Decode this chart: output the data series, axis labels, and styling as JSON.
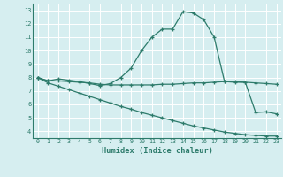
{
  "line1_x": [
    0,
    1,
    2,
    3,
    4,
    5,
    6,
    7,
    8,
    9,
    10,
    11,
    12,
    13,
    14,
    15,
    16,
    17,
    18,
    19,
    20,
    21,
    22,
    23
  ],
  "line1_y": [
    8.0,
    7.75,
    7.9,
    7.8,
    7.7,
    7.55,
    7.4,
    7.55,
    8.0,
    8.7,
    10.0,
    11.0,
    11.6,
    11.6,
    12.9,
    12.8,
    12.3,
    11.0,
    7.7,
    7.65,
    7.65,
    5.4,
    5.45,
    5.3
  ],
  "line2_x": [
    0,
    1,
    2,
    3,
    4,
    5,
    6,
    7,
    8,
    9,
    10,
    11,
    12,
    13,
    14,
    15,
    16,
    17,
    18,
    19,
    20,
    21,
    22,
    23
  ],
  "line2_y": [
    8.0,
    7.75,
    7.75,
    7.7,
    7.65,
    7.6,
    7.5,
    7.45,
    7.45,
    7.45,
    7.45,
    7.45,
    7.5,
    7.5,
    7.55,
    7.6,
    7.6,
    7.65,
    7.7,
    7.7,
    7.65,
    7.6,
    7.55,
    7.5
  ],
  "line3_x": [
    0,
    1,
    2,
    3,
    4,
    5,
    6,
    7,
    8,
    9,
    10,
    11,
    12,
    13,
    14,
    15,
    16,
    17,
    18,
    19,
    20,
    21,
    22,
    23
  ],
  "line3_y": [
    8.0,
    7.6,
    7.35,
    7.1,
    6.85,
    6.6,
    6.35,
    6.1,
    5.85,
    5.65,
    5.4,
    5.2,
    5.0,
    4.8,
    4.6,
    4.4,
    4.25,
    4.1,
    3.95,
    3.85,
    3.75,
    3.7,
    3.65,
    3.65
  ],
  "line_color": "#2D7B6B",
  "bg_color": "#D6EEF0",
  "grid_color": "#FFFFFF",
  "xlabel": "Humidex (Indice chaleur)",
  "xlim": [
    -0.5,
    23.5
  ],
  "ylim": [
    3.5,
    13.5
  ],
  "xticks": [
    0,
    1,
    2,
    3,
    4,
    5,
    6,
    7,
    8,
    9,
    10,
    11,
    12,
    13,
    14,
    15,
    16,
    17,
    18,
    19,
    20,
    21,
    22,
    23
  ],
  "yticks": [
    4,
    5,
    6,
    7,
    8,
    9,
    10,
    11,
    12,
    13
  ],
  "marker": "+",
  "marker_size": 3.0,
  "line_width": 0.9
}
